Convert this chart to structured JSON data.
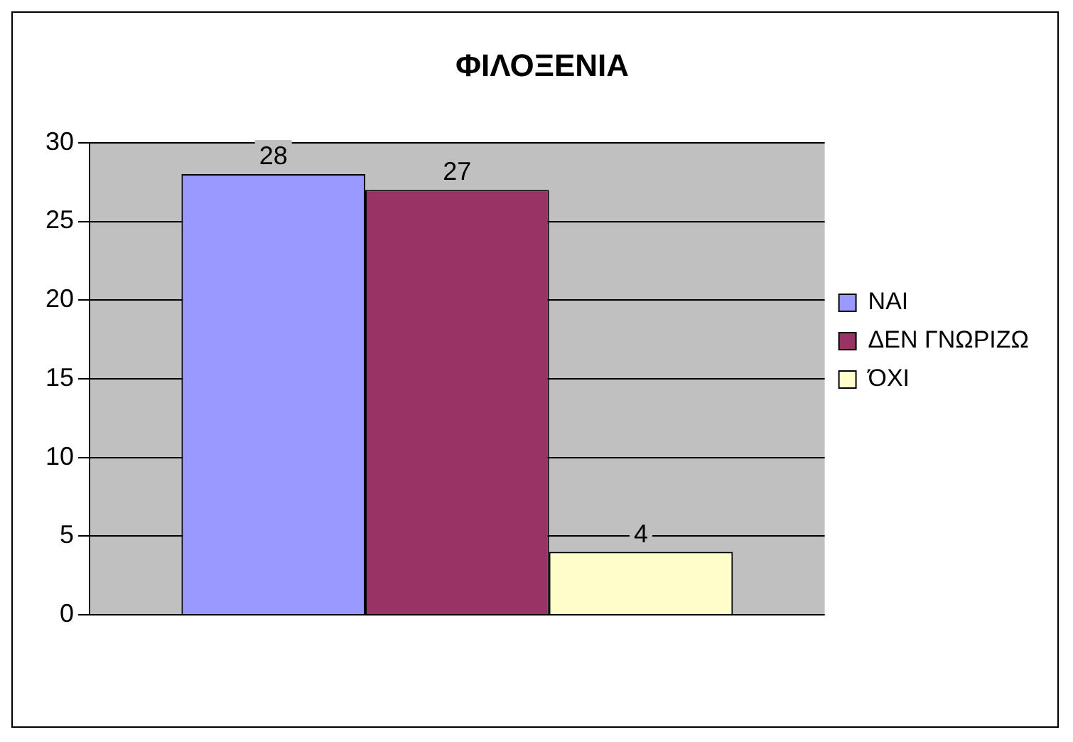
{
  "chart_data": {
    "type": "bar",
    "title": "ΦΙΛΟΞΕΝΙΑ",
    "categories": [
      null
    ],
    "series": [
      {
        "name": "ΝΑΙ",
        "color": "#9999ff",
        "values": [
          28
        ]
      },
      {
        "name": "ΔΕΝ ΓΝΩΡΙΖΩ",
        "color": "#993366",
        "values": [
          27
        ]
      },
      {
        "name": "ΌΧΙ",
        "color": "#ffffcc",
        "values": [
          4
        ]
      }
    ],
    "ylim": [
      0,
      30
    ],
    "yticks": [
      0,
      5,
      10,
      15,
      20,
      25,
      30
    ],
    "grid": "y",
    "legend": "right",
    "data_labels": true
  }
}
